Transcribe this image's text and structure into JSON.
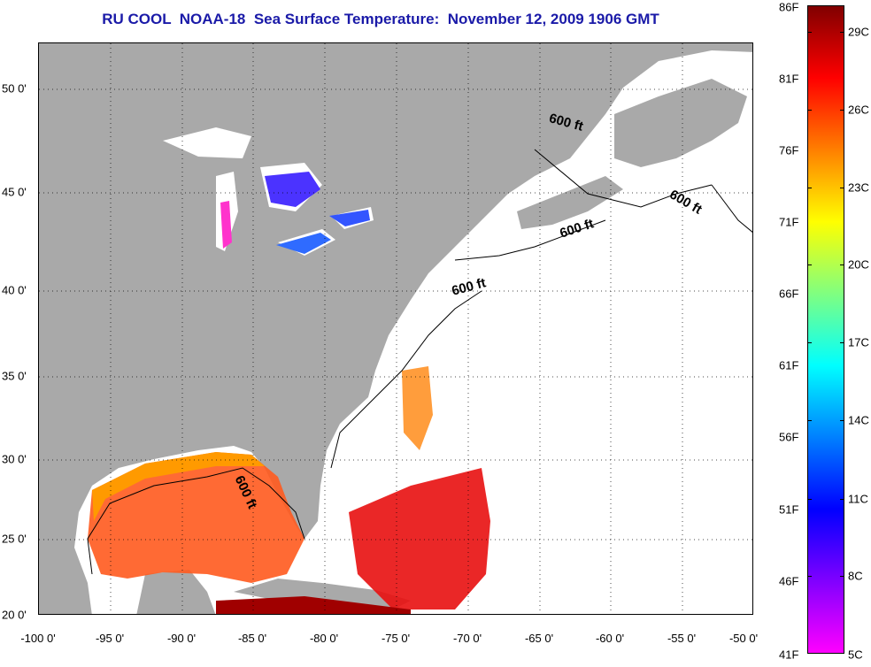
{
  "title": "RU COOL  NOAA-18  Sea Surface Temperature:  November 12, 2009 1906 GMT",
  "map": {
    "lon_labels": [
      "-100 0'",
      "-95 0'",
      "-90 0'",
      "-85 0'",
      "-80 0'",
      "-75 0'",
      "-70 0'",
      "-65 0'",
      "-60 0'",
      "-55 0'",
      "-50 0'"
    ],
    "lat_labels": [
      "50 0'",
      "45 0'",
      "40 0'",
      "35 0'",
      "30 0'",
      "25 0'",
      "20 0'"
    ],
    "contour_labels": [
      "600 ft",
      "600 ft",
      "600 ft",
      "600 ft",
      "600 ft"
    ],
    "colors": {
      "land": "#a9a9a9",
      "ocean_nodata": "#ffffff",
      "grid": "#000000"
    }
  },
  "colorbar": {
    "fahrenheit_labels": [
      "86F",
      "81F",
      "76F",
      "71F",
      "66F",
      "61F",
      "56F",
      "51F",
      "46F",
      "41F"
    ],
    "celsius_labels": [
      "29C",
      "26C",
      "23C",
      "20C",
      "17C",
      "14C",
      "11C",
      "8C",
      "5C"
    ],
    "range_c": [
      5,
      30
    ],
    "gradient_top_to_bottom": [
      "#800000",
      "#ff0000",
      "#ff7f00",
      "#ffff00",
      "#80ff80",
      "#00ffff",
      "#0080ff",
      "#0000ff",
      "#8000ff",
      "#ff00ff"
    ]
  }
}
